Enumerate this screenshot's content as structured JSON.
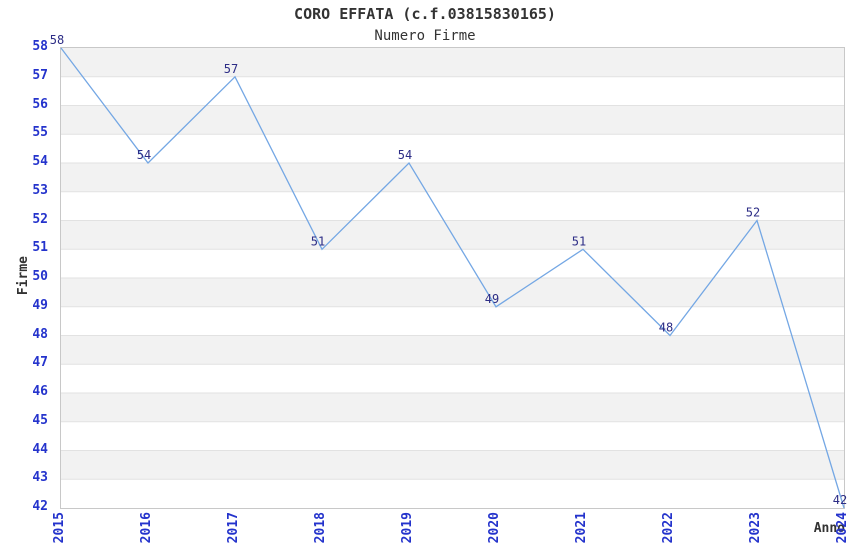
{
  "chart_data": {
    "type": "line",
    "title": "CORO EFFATA (c.f.03815830165)",
    "subtitle": "Numero Firme",
    "xlabel": "Anno",
    "ylabel": "Firme",
    "categories": [
      "2015",
      "2016",
      "2017",
      "2018",
      "2019",
      "2020",
      "2021",
      "2022",
      "2023",
      "2024"
    ],
    "values": [
      58,
      54,
      57,
      51,
      54,
      49,
      51,
      48,
      52,
      42
    ],
    "ylim": [
      42,
      58
    ],
    "ytick_step": 1,
    "grid": "horizontal alternating bands",
    "legend": "none",
    "colors": {
      "line": "#74a7e4",
      "value_label": "#2d2d86",
      "tick_label": "#2433cc",
      "title": "#333333",
      "axis_label": "#333333",
      "band": "#f2f2f2",
      "band_alt": "#ffffff",
      "gridline": "#e2e2e2",
      "plot_border": "#c8c8c8",
      "background": "#ffffff"
    }
  }
}
